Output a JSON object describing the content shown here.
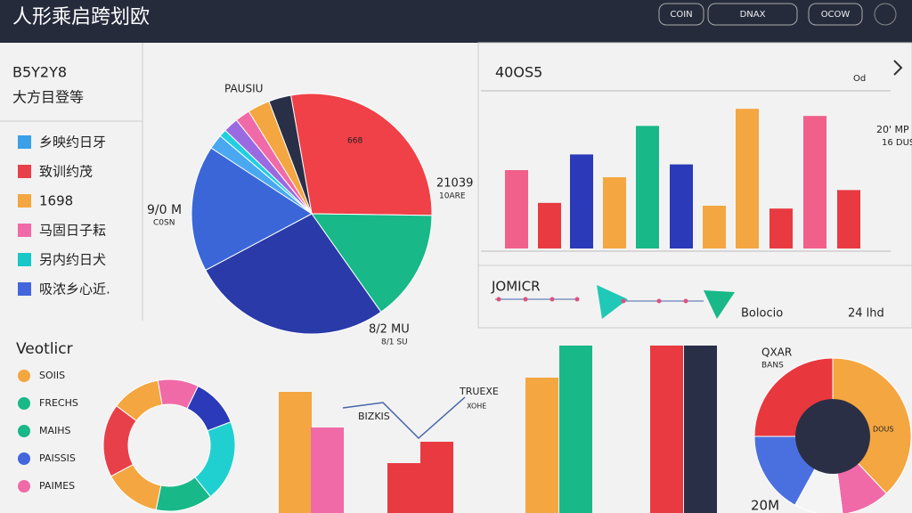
{
  "header": {
    "title": "人形乘启跨划欧",
    "buttons": [
      "COIN",
      "DNAX",
      "OCOW"
    ]
  },
  "legend_panel": {
    "heading": [
      "B5Y2Y8",
      "大方目登等"
    ],
    "items": [
      {
        "label": "乡映约日牙",
        "color": "#3aa0e8"
      },
      {
        "label": "致训约茂",
        "color": "#e8404a"
      },
      {
        "label": "1698",
        "color": "#f4a640"
      },
      {
        "label": "马固日子耘",
        "color": "#f06aa8"
      },
      {
        "label": "另内约日犬",
        "color": "#18c8c8"
      },
      {
        "label": "吸浓乡心近.",
        "color": "#4466dd"
      }
    ]
  },
  "legend_panel_2": {
    "heading": "Veotlicr",
    "items": [
      {
        "label": "SOIIS",
        "color": "#f4a640"
      },
      {
        "label": "FRECHS",
        "color": "#18b888"
      },
      {
        "label": "MAIHS",
        "color": "#18b888"
      },
      {
        "label": "PAISSIS",
        "color": "#4466dd"
      },
      {
        "label": "PAIMES",
        "color": "#f06aa8"
      }
    ]
  },
  "strip": {
    "title": "JOMICR",
    "labels": [
      "Bolocio",
      "24 lhd"
    ]
  },
  "chart_data": [
    {
      "type": "pie",
      "values": [
        28,
        15,
        27,
        17,
        2,
        1,
        2,
        2,
        3,
        3
      ],
      "colors": [
        "#f04048",
        "#18b888",
        "#2a3aa8",
        "#3a66d8",
        "#4aa8f0",
        "#20d0e0",
        "#9a6ae0",
        "#f06aa8",
        "#f4a640",
        "#2a2f48"
      ],
      "annotations": [
        "PAUSIU",
        "21039",
        "10ARE",
        "9/0 M",
        "C0SN",
        "8/2 MU",
        "8/1 SU",
        "668"
      ]
    },
    {
      "type": "bar",
      "title": "40OS5",
      "values": [
        55,
        32,
        66,
        50,
        86,
        59,
        30,
        98,
        28,
        93,
        41
      ],
      "colors": [
        "#f0608a",
        "#e83a40",
        "#2a3ab8",
        "#f4a640",
        "#18b888",
        "#2a3ab8",
        "#f4a640",
        "#f4a640",
        "#e83a40",
        "#f0608a",
        "#e83a40"
      ],
      "ylim": [
        0,
        100
      ],
      "annotations": [
        "Od",
        "20' MP",
        "16 DUS"
      ]
    },
    {
      "type": "donut",
      "values": [
        10,
        12,
        20,
        14,
        14,
        18,
        12
      ],
      "colors": [
        "#f06aa8",
        "#2a3ab8",
        "#20d0d0",
        "#18b888",
        "#f4a640",
        "#e8404a",
        "#f4a640"
      ]
    },
    {
      "type": "bar",
      "values": [
        68,
        48,
        28,
        40,
        76,
        94,
        94,
        94
      ],
      "colors": [
        "#f4a640",
        "#f06aa8",
        "#e83a40",
        "#e83a40",
        "#f4a640",
        "#18b888",
        "#e83a40",
        "#2a2f48"
      ],
      "ylim": [
        0,
        100
      ],
      "annotations": [
        "BIZKIS",
        "TRUEXE",
        "XOHE"
      ]
    },
    {
      "type": "donut",
      "values": [
        38,
        10,
        10,
        17,
        25
      ],
      "colors": [
        "#f4a640",
        "#f06aa8",
        "#f4f4f4",
        "#4a70e0",
        "#e8383e"
      ],
      "annotations": [
        "QXAR",
        "BANS",
        "20M",
        "DOUS"
      ]
    }
  ]
}
